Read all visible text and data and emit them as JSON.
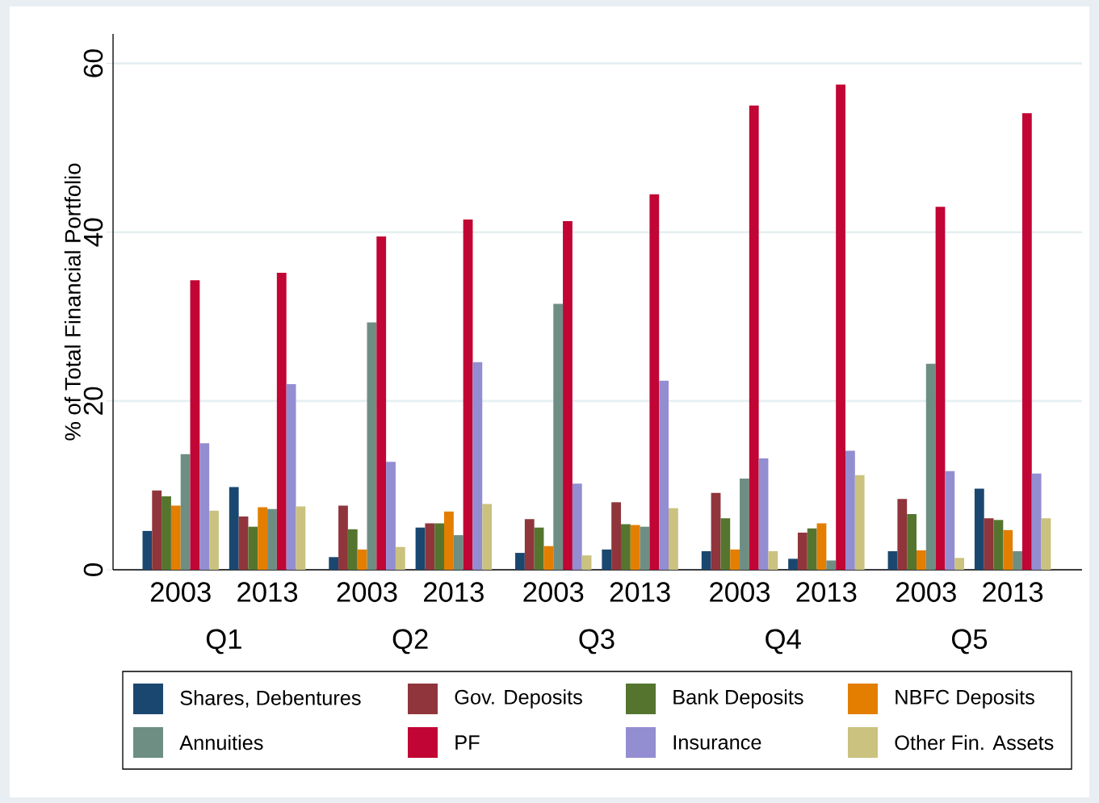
{
  "chart_data": {
    "type": "bar",
    "ylabel": "% of Total Financial Portfolio",
    "categories": [
      "2003",
      "2013",
      "2003",
      "2013",
      "2003",
      "2013",
      "2003",
      "2013",
      "2003",
      "2013"
    ],
    "annotations": [
      "Q1",
      "Q2",
      "Q3",
      "Q4",
      "Q5"
    ],
    "series": [
      {
        "name": "Shares, Debentures",
        "color": "#1a476f",
        "values": [
          4.6,
          9.8,
          1.5,
          5.0,
          2.0,
          2.4,
          2.2,
          1.3,
          2.2,
          9.6
        ]
      },
      {
        "name": "Gov. Deposits",
        "color": "#90353b",
        "values": [
          9.4,
          6.3,
          7.6,
          5.5,
          6.0,
          8.0,
          9.1,
          4.4,
          8.4,
          6.1
        ]
      },
      {
        "name": "Bank Deposits",
        "color": "#55752f",
        "values": [
          8.7,
          5.1,
          4.8,
          5.5,
          5.0,
          5.4,
          6.1,
          4.9,
          6.6,
          5.9
        ]
      },
      {
        "name": "NBFC Deposits",
        "color": "#e37e00",
        "values": [
          7.6,
          7.4,
          2.4,
          6.9,
          2.8,
          5.3,
          2.4,
          5.5,
          2.3,
          4.7
        ]
      },
      {
        "name": "Annuities",
        "color": "#6e8e84",
        "values": [
          13.7,
          7.2,
          29.3,
          4.1,
          31.5,
          5.1,
          10.8,
          1.1,
          24.4,
          2.2
        ]
      },
      {
        "name": "PF",
        "color": "#c10534",
        "values": [
          34.3,
          35.2,
          39.5,
          41.5,
          41.3,
          44.5,
          55.0,
          57.5,
          43.0,
          54.1
        ]
      },
      {
        "name": "Insurance",
        "color": "#938dd2",
        "values": [
          15.0,
          22.0,
          12.8,
          24.6,
          10.2,
          22.4,
          13.2,
          14.1,
          11.7,
          11.4
        ]
      },
      {
        "name": "Other Fin. Assets",
        "color": "#cac27e",
        "values": [
          7.0,
          7.5,
          2.7,
          7.8,
          1.7,
          7.3,
          2.2,
          11.2,
          1.4,
          6.1
        ]
      }
    ],
    "ylim": [
      0,
      63.5
    ],
    "yticks": [
      0,
      20,
      40,
      60
    ],
    "grid": "y",
    "legend": "bottom"
  }
}
